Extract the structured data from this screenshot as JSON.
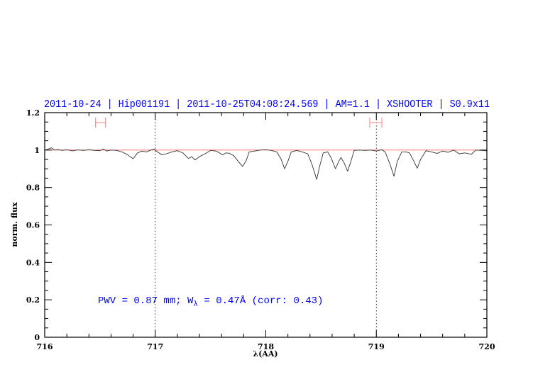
{
  "chart_data": {
    "type": "line",
    "title": "2011-10-24 | Hip001191 | 2011-10-25T04:08:24.569 | AM=1.1 | XSHOOTER | S0.9x11",
    "xlabel": "λ(AA)",
    "ylabel": "norm. flux",
    "xlim": [
      716,
      720
    ],
    "ylim": [
      0,
      1.2
    ],
    "xticks": [
      "716",
      "717",
      "718",
      "719",
      "720"
    ],
    "yticks": [
      "0",
      "0.2",
      "0.4",
      "0.6",
      "0.8",
      "1",
      "1.2"
    ],
    "grid": false,
    "reference_line": {
      "y": 1.0,
      "color": "#ff6060"
    },
    "dotted_vertical_lines": [
      717,
      719
    ],
    "error_bars": [
      {
        "x": [
          716.46,
          716.55
        ],
        "y": 1.147
      },
      {
        "x": [
          718.94,
          719.05
        ],
        "y": 1.147
      }
    ],
    "error_bar_color": "#ff8080",
    "annotation": {
      "prefix": "PWV = 0.87 mm; W",
      "sub": "λ",
      "suffix": " = 0.47Å (corr: 0.43)"
    },
    "colors": {
      "title": "#0000ff",
      "spectrum": "#333333"
    },
    "series": [
      {
        "points": [
          [
            716.0,
            1.0
          ],
          [
            716.03,
            1.005
          ],
          [
            716.06,
            1.012
          ],
          [
            716.09,
            1.0
          ],
          [
            716.12,
            1.003
          ],
          [
            716.16,
            0.998
          ],
          [
            716.2,
            1.002
          ],
          [
            716.25,
            0.996
          ],
          [
            716.3,
            1.001
          ],
          [
            716.35,
            0.998
          ],
          [
            716.4,
            1.002
          ],
          [
            716.45,
            0.998
          ],
          [
            716.5,
            0.997
          ],
          [
            716.53,
            1.006
          ],
          [
            716.56,
            0.995
          ],
          [
            716.6,
            1.0
          ],
          [
            716.65,
            0.998
          ],
          [
            716.7,
            0.99
          ],
          [
            716.75,
            0.975
          ],
          [
            716.8,
            0.954
          ],
          [
            716.84,
            0.985
          ],
          [
            716.88,
            0.995
          ],
          [
            716.92,
            0.99
          ],
          [
            716.96,
            1.0
          ],
          [
            716.99,
            1.005
          ],
          [
            717.02,
            0.99
          ],
          [
            717.06,
            0.975
          ],
          [
            717.1,
            0.98
          ],
          [
            717.15,
            0.99
          ],
          [
            717.2,
            0.997
          ],
          [
            717.25,
            0.985
          ],
          [
            717.3,
            0.955
          ],
          [
            717.33,
            0.965
          ],
          [
            717.36,
            0.947
          ],
          [
            717.4,
            0.965
          ],
          [
            717.45,
            0.98
          ],
          [
            717.5,
            0.998
          ],
          [
            717.55,
            0.995
          ],
          [
            717.58,
            0.985
          ],
          [
            717.61,
            0.974
          ],
          [
            717.64,
            0.985
          ],
          [
            717.67,
            0.983
          ],
          [
            717.71,
            0.97
          ],
          [
            717.75,
            0.94
          ],
          [
            717.79,
            0.913
          ],
          [
            717.82,
            0.94
          ],
          [
            717.85,
            0.99
          ],
          [
            717.9,
            0.995
          ],
          [
            717.95,
            1.0
          ],
          [
            718.0,
            1.002
          ],
          [
            718.05,
            0.998
          ],
          [
            718.1,
            0.99
          ],
          [
            718.14,
            0.95
          ],
          [
            718.17,
            0.9
          ],
          [
            718.2,
            0.94
          ],
          [
            718.23,
            0.99
          ],
          [
            718.28,
            0.998
          ],
          [
            718.33,
            0.99
          ],
          [
            718.38,
            0.98
          ],
          [
            718.42,
            0.92
          ],
          [
            718.46,
            0.843
          ],
          [
            718.49,
            0.92
          ],
          [
            718.52,
            0.985
          ],
          [
            718.56,
            0.99
          ],
          [
            718.59,
            0.96
          ],
          [
            718.63,
            0.9
          ],
          [
            718.66,
            0.94
          ],
          [
            718.68,
            0.96
          ],
          [
            718.71,
            0.93
          ],
          [
            718.74,
            0.887
          ],
          [
            718.77,
            0.94
          ],
          [
            718.8,
            0.998
          ],
          [
            718.85,
            1.0
          ],
          [
            718.9,
            0.998
          ],
          [
            718.95,
            1.0
          ],
          [
            719.0,
            0.995
          ],
          [
            719.05,
            1.002
          ],
          [
            719.08,
            0.99
          ],
          [
            719.12,
            0.93
          ],
          [
            719.16,
            0.86
          ],
          [
            719.19,
            0.94
          ],
          [
            719.23,
            0.99
          ],
          [
            719.27,
            0.99
          ],
          [
            719.3,
            0.985
          ],
          [
            719.34,
            0.94
          ],
          [
            719.37,
            0.903
          ],
          [
            719.4,
            0.95
          ],
          [
            719.45,
            0.997
          ],
          [
            719.5,
            0.99
          ],
          [
            719.55,
            0.982
          ],
          [
            719.6,
            0.995
          ],
          [
            719.65,
            0.988
          ],
          [
            719.7,
            1.0
          ],
          [
            719.75,
            0.98
          ],
          [
            719.8,
            0.985
          ],
          [
            719.86,
            0.978
          ],
          [
            719.9,
            1.0
          ],
          [
            719.95,
            0.998
          ],
          [
            720.0,
            0.996
          ]
        ]
      }
    ]
  }
}
